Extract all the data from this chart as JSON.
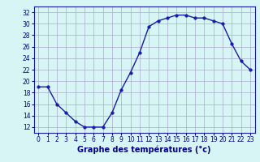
{
  "hours": [
    0,
    1,
    2,
    3,
    4,
    5,
    6,
    7,
    8,
    9,
    10,
    11,
    12,
    13,
    14,
    15,
    16,
    17,
    18,
    19,
    20,
    21,
    22,
    23
  ],
  "temps": [
    19,
    19,
    16,
    14.5,
    13,
    12,
    12,
    12,
    14.5,
    18.5,
    21.5,
    25,
    29.5,
    30.5,
    31,
    31.5,
    31.5,
    31,
    31,
    30.5,
    30,
    26.5,
    23.5,
    22
  ],
  "line_color": "#1a1aaa",
  "marker": "o",
  "markersize": 2.5,
  "linewidth": 1.0,
  "bg_color": "#d8f5f5",
  "grid_color": "#aaaacc",
  "xlabel": "Graphe des températures (°c)",
  "xlabel_color": "#00008B",
  "xlabel_fontsize": 7,
  "tick_color": "#00008B",
  "tick_fontsize": 5.5,
  "ylim": [
    11,
    33
  ],
  "yticks": [
    12,
    14,
    16,
    18,
    20,
    22,
    24,
    26,
    28,
    30,
    32
  ],
  "xticks": [
    0,
    1,
    2,
    3,
    4,
    5,
    6,
    7,
    8,
    9,
    10,
    11,
    12,
    13,
    14,
    15,
    16,
    17,
    18,
    19,
    20,
    21,
    22,
    23
  ],
  "xlim": [
    -0.5,
    23.5
  ]
}
